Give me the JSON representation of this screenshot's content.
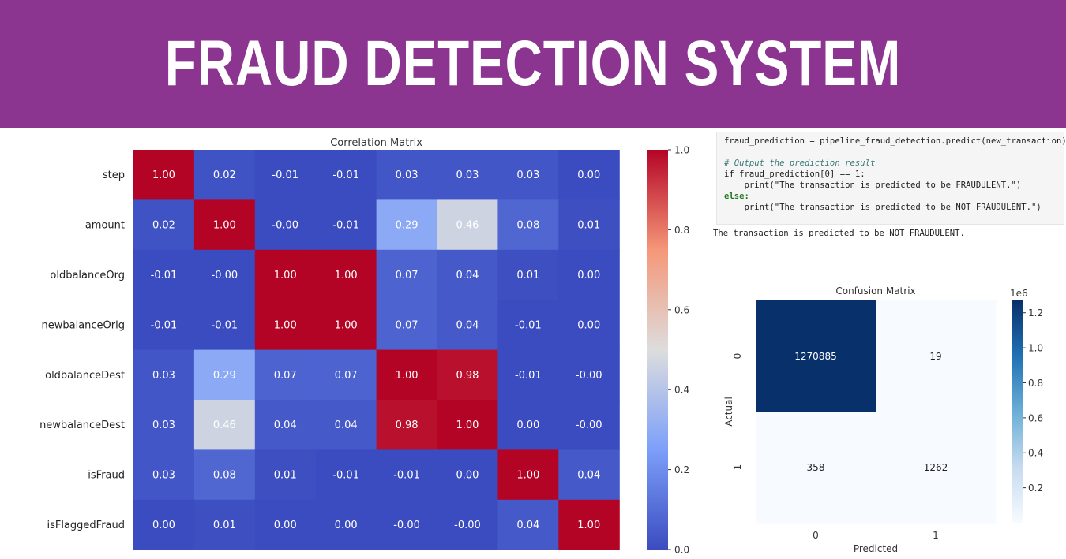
{
  "header": {
    "title": "FRAUD DETECTION SYSTEM",
    "background_color": "#8b3590"
  },
  "code": {
    "lines": [
      "fraud_prediction = pipeline_fraud_detection.predict(new_transaction)",
      "",
      "# Output the prediction result",
      "if fraud_prediction[0] == 1:",
      "    print(\"The transaction is predicted to be FRAUDULENT.\")",
      "else:",
      "    print(\"The transaction is predicted to be NOT FRAUDULENT.\")"
    ],
    "output": "The transaction is predicted to be NOT FRAUDULENT."
  },
  "chart_data": [
    {
      "type": "heatmap",
      "title": "Correlation Matrix",
      "colormap": "coolwarm",
      "row_labels": [
        "step",
        "amount",
        "oldbalanceOrg",
        "newbalanceOrig",
        "oldbalanceDest",
        "newbalanceDest",
        "isFraud",
        "isFlaggedFraud"
      ],
      "col_labels": [],
      "values": [
        [
          "1.00",
          "0.02",
          "-0.01",
          "-0.01",
          "0.03",
          "0.03",
          "0.03",
          "0.00"
        ],
        [
          "0.02",
          "1.00",
          "-0.00",
          "-0.01",
          "0.29",
          "0.46",
          "0.08",
          "0.01"
        ],
        [
          "-0.01",
          "-0.00",
          "1.00",
          "1.00",
          "0.07",
          "0.04",
          "0.01",
          "0.00"
        ],
        [
          "-0.01",
          "-0.01",
          "1.00",
          "1.00",
          "0.07",
          "0.04",
          "-0.01",
          "0.00"
        ],
        [
          "0.03",
          "0.29",
          "0.07",
          "0.07",
          "1.00",
          "0.98",
          "-0.01",
          "-0.00"
        ],
        [
          "0.03",
          "0.46",
          "0.04",
          "0.04",
          "0.98",
          "1.00",
          "0.00",
          "-0.00"
        ],
        [
          "0.03",
          "0.08",
          "0.01",
          "-0.01",
          "-0.01",
          "0.00",
          "1.00",
          "0.04"
        ],
        [
          "0.00",
          "0.01",
          "0.00",
          "0.00",
          "-0.00",
          "-0.00",
          "0.04",
          "1.00"
        ]
      ],
      "colorbar": {
        "range": [
          0.0,
          1.0
        ],
        "ticks": [
          "0.0",
          "0.2",
          "0.4",
          "0.6",
          "0.8",
          "1.0"
        ]
      }
    },
    {
      "type": "heatmap",
      "title": "Confusion Matrix",
      "colormap": "Blues",
      "xlabel": "Predicted",
      "ylabel": "Actual",
      "x_ticks": [
        "0",
        "1"
      ],
      "y_ticks": [
        "0",
        "1"
      ],
      "values": [
        [
          1270885,
          19
        ],
        [
          358,
          1262
        ]
      ],
      "colorbar": {
        "range": [
          0,
          1270885
        ],
        "ticks": [
          "0.2",
          "0.4",
          "0.6",
          "0.8",
          "1.0",
          "1.2"
        ],
        "tick_values": [
          0.2,
          0.4,
          0.6,
          0.8,
          1.0,
          1.2
        ],
        "scale_label": "1e6"
      }
    }
  ]
}
